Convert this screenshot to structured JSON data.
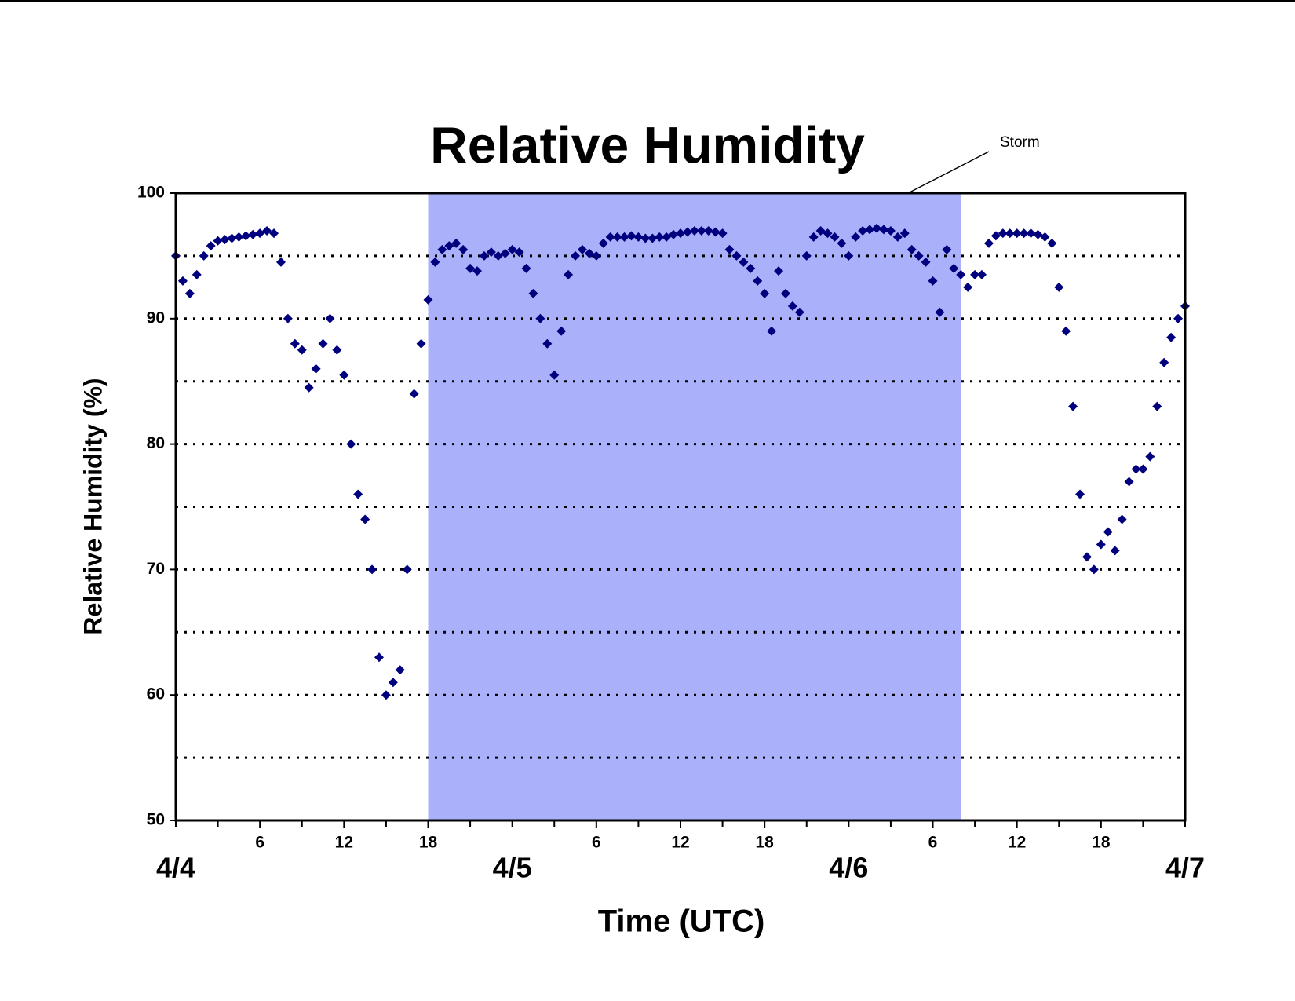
{
  "chart_data": {
    "type": "scatter",
    "title": "Relative Humidity",
    "x_label": "Time (UTC)",
    "y_label": "Relative Humidity (%)",
    "xlim": [
      0,
      72
    ],
    "ylim": [
      50,
      100
    ],
    "yticks": [
      50,
      60,
      70,
      80,
      90,
      100
    ],
    "grid_lines": [
      55,
      60,
      65,
      70,
      75,
      80,
      85,
      90,
      95
    ],
    "xticks": [
      6,
      12,
      18,
      {
        "value": 30,
        "label": "6"
      },
      {
        "value": 36,
        "label": "12"
      },
      {
        "value": 42,
        "label": "18"
      },
      {
        "value": 54,
        "label": "6"
      },
      {
        "value": 60,
        "label": "12"
      },
      {
        "value": 66,
        "label": "18"
      }
    ],
    "xminorticks": [
      0,
      3,
      9,
      15,
      21,
      24,
      27,
      33,
      39,
      45,
      48,
      51,
      57,
      63,
      69,
      72
    ],
    "xdate_labels": [
      {
        "value": 0,
        "label": "4/4"
      },
      {
        "value": 24,
        "label": "4/5"
      },
      {
        "value": 48,
        "label": "4/6"
      },
      {
        "value": 72,
        "label": "4/7"
      }
    ],
    "shaded_region": {
      "label": "Storm",
      "xlim": [
        18,
        56
      ],
      "color": "#aab0fa"
    },
    "series": [
      {
        "color": "#00007f",
        "x": [
          0,
          0.5,
          1,
          1.5,
          2,
          2.5,
          3,
          3.5,
          4,
          4.5,
          5,
          5.5,
          6,
          6.5,
          7,
          7.5,
          8,
          8.5,
          9,
          9.5,
          10,
          10.5,
          11,
          11.5,
          12,
          12.5,
          13,
          13.5,
          14,
          14.5,
          15,
          15.5,
          16,
          16.5,
          17,
          17.5,
          18,
          18.5,
          19,
          19.5,
          20,
          20.5,
          21,
          21.5,
          22,
          22.5,
          23,
          23.5,
          24,
          24.5,
          25,
          25.5,
          26,
          26.5,
          27,
          27.5,
          28,
          28.5,
          29,
          29.5,
          30,
          30.5,
          31,
          31.5,
          32,
          32.5,
          33,
          33.5,
          34,
          34.5,
          35,
          35.5,
          36,
          36.5,
          37,
          37.5,
          38,
          38.5,
          39,
          39.5,
          40,
          40.5,
          41,
          41.5,
          42,
          42.5,
          43,
          43.5,
          44,
          44.5,
          45,
          45.5,
          46,
          46.5,
          47,
          47.5,
          48,
          48.5,
          49,
          49.5,
          50,
          50.5,
          51,
          51.5,
          52,
          52.5,
          53,
          53.5,
          54,
          54.5,
          55,
          55.5,
          56,
          56.5,
          57,
          57.5,
          58,
          58.5,
          59,
          59.5,
          60,
          60.5,
          61,
          61.5,
          62,
          62.5,
          63,
          63.5,
          64,
          64.5,
          65,
          65.5,
          66,
          66.5,
          67,
          67.5,
          68,
          68.5,
          69,
          69.5,
          70,
          70.5,
          71,
          71.5,
          72
        ],
        "values": [
          95,
          93,
          92,
          93.5,
          95,
          95.8,
          96.2,
          96.3,
          96.4,
          96.5,
          96.6,
          96.7,
          96.8,
          97,
          96.8,
          94.5,
          90,
          88,
          87.5,
          84.5,
          86,
          88,
          90,
          87.5,
          85.5,
          80,
          76,
          74,
          70,
          63,
          60,
          61,
          62,
          70,
          84,
          88,
          91.5,
          94.5,
          95.5,
          95.8,
          96,
          95.5,
          94,
          93.8,
          95,
          95.3,
          95,
          95.2,
          95.5,
          95.3,
          94,
          92,
          90,
          88,
          85.5,
          89,
          93.5,
          95,
          95.5,
          95.2,
          95,
          96,
          96.5,
          96.5,
          96.5,
          96.6,
          96.5,
          96.4,
          96.4,
          96.5,
          96.5,
          96.7,
          96.8,
          96.9,
          97,
          97,
          97,
          96.9,
          96.8,
          95.5,
          95,
          94.5,
          94,
          93,
          92,
          89,
          93.8,
          92,
          91,
          90.5,
          95,
          96.5,
          97,
          96.8,
          96.5,
          96,
          95,
          96.5,
          97,
          97.1,
          97.2,
          97.1,
          97,
          96.5,
          96.8,
          95.5,
          95,
          94.5,
          93,
          90.5,
          95.5,
          94,
          93.5,
          92.5,
          93.5,
          93.5,
          96,
          96.6,
          96.8,
          96.8,
          96.8,
          96.8,
          96.8,
          96.7,
          96.5,
          96,
          92.5,
          89,
          83,
          76,
          71,
          70,
          72,
          73,
          71.5,
          74,
          77,
          78,
          78,
          79,
          83,
          86.5,
          88.5,
          90,
          91
        ]
      }
    ]
  }
}
